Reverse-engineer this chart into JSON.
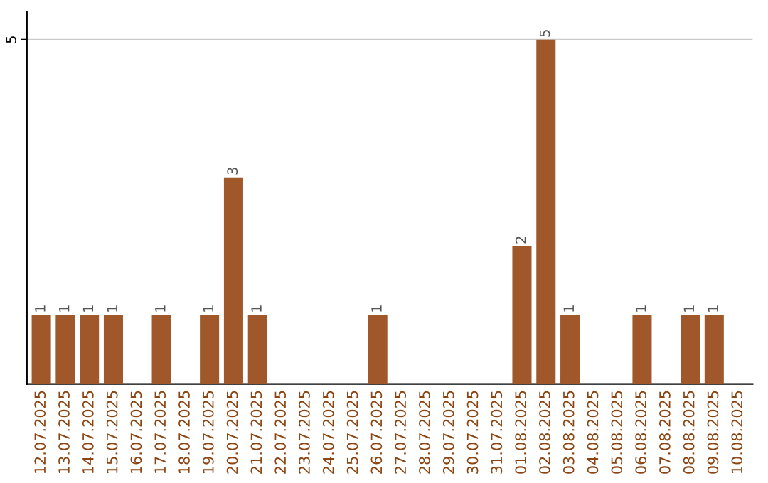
{
  "chart_data": {
    "type": "bar",
    "categories": [
      "12.07.2025",
      "13.07.2025",
      "14.07.2025",
      "15.07.2025",
      "16.07.2025",
      "17.07.2025",
      "18.07.2025",
      "19.07.2025",
      "20.07.2025",
      "21.07.2025",
      "22.07.2025",
      "23.07.2025",
      "24.07.2025",
      "25.07.2025",
      "26.07.2025",
      "27.07.2025",
      "28.07.2025",
      "29.07.2025",
      "30.07.2025",
      "31.07.2025",
      "01.08.2025",
      "02.08.2025",
      "03.08.2025",
      "04.08.2025",
      "05.08.2025",
      "06.08.2025",
      "07.08.2025",
      "08.08.2025",
      "09.08.2025",
      "10.08.2025"
    ],
    "values": [
      1,
      1,
      1,
      1,
      0,
      1,
      0,
      1,
      3,
      1,
      0,
      0,
      0,
      0,
      1,
      0,
      0,
      0,
      0,
      0,
      2,
      5,
      1,
      0,
      0,
      1,
      0,
      1,
      1,
      0
    ],
    "value_labels": [
      "1",
      "1",
      "1",
      "1",
      null,
      "1",
      null,
      "1",
      "3",
      "1",
      null,
      null,
      null,
      null,
      "1",
      null,
      null,
      null,
      null,
      null,
      "2",
      "5",
      "1",
      null,
      null,
      "1",
      null,
      "1",
      "1",
      null
    ],
    "color": "#a0582a",
    "ylim": [
      0,
      5.4
    ],
    "yticks": [
      5
    ],
    "grid": "y"
  }
}
